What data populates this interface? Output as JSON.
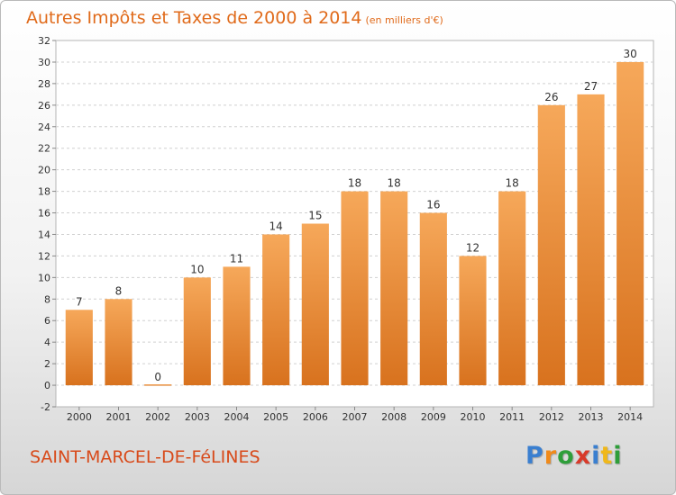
{
  "header": {
    "title": "Autres Impôts et Taxes de 2000 à 2014",
    "unit": "(en milliers d'€)"
  },
  "footer": {
    "commune": "SAINT-MARCEL-DE-FéLINES",
    "logo_letters": [
      "P",
      "r",
      "o",
      "x",
      "i",
      "t",
      "i"
    ],
    "logo_colors": [
      "#3a7fd0",
      "#f08a1a",
      "#2e9e3a",
      "#d83a2a",
      "#3a7fd0",
      "#f0b81a",
      "#2e9e3a"
    ]
  },
  "colors": {
    "bar_top": "#f6a85a",
    "bar_bottom": "#d8721e",
    "title": "#e06a1a",
    "commune": "#d84a1a"
  },
  "chart_data": {
    "type": "bar",
    "categories": [
      "2000",
      "2001",
      "2002",
      "2003",
      "2004",
      "2005",
      "2006",
      "2007",
      "2008",
      "2009",
      "2010",
      "2011",
      "2012",
      "2013",
      "2014"
    ],
    "values": [
      7,
      8,
      0,
      10,
      11,
      14,
      15,
      18,
      18,
      16,
      12,
      18,
      26,
      27,
      30
    ],
    "data_labels": [
      "7",
      "8",
      "0",
      "10",
      "11",
      "14",
      "15",
      "18",
      "18",
      "16",
      "12",
      "18",
      "26",
      "27",
      "30"
    ],
    "yticks": [
      -2,
      0,
      2,
      4,
      6,
      8,
      10,
      12,
      14,
      16,
      18,
      20,
      22,
      24,
      26,
      28,
      30,
      32
    ],
    "ylim": [
      -2,
      32
    ],
    "grid": "horizontal-dashed",
    "legend": "none"
  }
}
